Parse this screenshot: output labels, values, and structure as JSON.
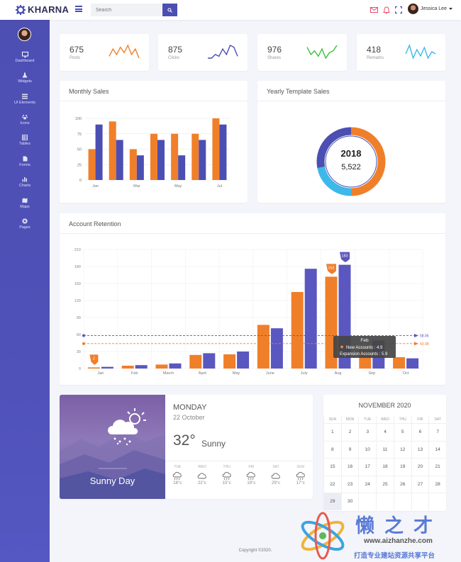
{
  "app": {
    "name": "KHARNA"
  },
  "search": {
    "placeholder": "Search"
  },
  "user": {
    "name": "Jessica Lee"
  },
  "sidebar": {
    "items": [
      {
        "label": "Dashboard",
        "icon": "monitor-icon"
      },
      {
        "label": "Widgets",
        "icon": "flask-icon"
      },
      {
        "label": "UI Elements",
        "icon": "list-icon"
      },
      {
        "label": "Icons",
        "icon": "paw-icon"
      },
      {
        "label": "Tables",
        "icon": "table-icon"
      },
      {
        "label": "Forms",
        "icon": "file-icon"
      },
      {
        "label": "Charts",
        "icon": "bar-chart-icon"
      },
      {
        "label": "Maps",
        "icon": "map-icon"
      },
      {
        "label": "Pages",
        "icon": "gear-icon"
      }
    ]
  },
  "stats": [
    {
      "value": "675",
      "label": "Posts",
      "color": "#f07f2a",
      "trend": [
        3,
        7,
        4,
        8,
        5,
        9,
        4,
        7,
        2
      ]
    },
    {
      "value": "875",
      "label": "Clicks",
      "color": "#4b4fb2",
      "trend": [
        2,
        2,
        4,
        3,
        7,
        4,
        9,
        8,
        3
      ]
    },
    {
      "value": "976",
      "label": "Shares",
      "color": "#3cc13b",
      "trend": [
        8,
        4,
        6,
        3,
        7,
        2,
        5,
        6,
        9
      ]
    },
    {
      "value": "418",
      "label": "Remarks",
      "color": "#3db8e8",
      "trend": [
        5,
        9,
        3,
        7,
        4,
        8,
        3,
        6,
        5
      ]
    }
  ],
  "monthly_sales": {
    "title": "Monthly Sales"
  },
  "yearly_sales": {
    "title": "Yearly Template Sales",
    "year": "2018",
    "total": "5,522",
    "segments": [
      {
        "value": 50,
        "color": "#f07f2a"
      },
      {
        "value": 22,
        "color": "#3db8e8"
      },
      {
        "value": 28,
        "color": "#4b4fb2"
      }
    ]
  },
  "account_retention": {
    "title": "Account Retention",
    "tooltip": {
      "title": "Feb",
      "line1": "New Accounts : 4.9",
      "line2": "Expansion Accounts : 5.9"
    },
    "ref_right1": "58.06",
    "ref_right2": "43.98",
    "pin_first": "2",
    "pin_162": "162",
    "pin_183": "183"
  },
  "weather": {
    "day": "MONDAY",
    "date": "22 October",
    "temp": "32°",
    "condition": "Sunny",
    "label": "Sunny Day",
    "forecast": [
      {
        "day": "TUE",
        "temp": "18°c",
        "icon": "rain-icon"
      },
      {
        "day": "WED",
        "temp": "22°c",
        "icon": "cloud-icon"
      },
      {
        "day": "THU",
        "temp": "15°c",
        "icon": "rain-icon"
      },
      {
        "day": "FRI",
        "temp": "19°c",
        "icon": "rain-icon"
      },
      {
        "day": "SAT",
        "temp": "29°c",
        "icon": "cloud-icon"
      },
      {
        "day": "SUN",
        "temp": "17°c",
        "icon": "rain-icon"
      }
    ]
  },
  "calendar": {
    "title": "NOVEMBER 2020",
    "weekdays": [
      "SUN",
      "MON",
      "TUE",
      "WED",
      "THU",
      "FRI",
      "SAT"
    ],
    "weeks": [
      [
        "1",
        "2",
        "3",
        "4",
        "5",
        "6",
        "7"
      ],
      [
        "8",
        "9",
        "10",
        "11",
        "12",
        "13",
        "14"
      ],
      [
        "15",
        "16",
        "17",
        "18",
        "19",
        "20",
        "21"
      ],
      [
        "22",
        "23",
        "24",
        "25",
        "26",
        "27",
        "28"
      ],
      [
        "29",
        "30",
        "",
        "",
        "",
        "",
        ""
      ]
    ],
    "selected": "29"
  },
  "footer": {
    "text": "Copyright ©2020."
  },
  "watermark": {
    "cn": "懒之才",
    "url": "www.aizhanzhe.com",
    "slogan": "打造专业建站资源共享平台"
  },
  "chart_data": [
    {
      "type": "bar",
      "title": "Monthly Sales",
      "categories": [
        "Jan",
        "",
        "Mar",
        "",
        "May",
        "",
        "Jul"
      ],
      "series": [
        {
          "name": "A",
          "color": "#f07f2a",
          "values": [
            50,
            95,
            50,
            75,
            75,
            75,
            100
          ]
        },
        {
          "name": "B",
          "color": "#4b4fb2",
          "values": [
            90,
            65,
            40,
            65,
            40,
            65,
            90
          ]
        }
      ],
      "yticks": [
        "0",
        "25",
        "50",
        "75",
        "100"
      ],
      "ylim": [
        0,
        100
      ],
      "xlabel": "",
      "ylabel": ""
    },
    {
      "type": "pie",
      "title": "Yearly Template Sales",
      "labels": [
        "",
        "",
        ""
      ],
      "values": [
        50,
        22,
        28
      ]
    },
    {
      "type": "bar",
      "title": "Account Retention",
      "categories": [
        "Jan",
        "Feb",
        "March",
        "April",
        "May",
        "June",
        "July",
        "Aug",
        "Sep",
        "Oct"
      ],
      "series": [
        {
          "name": "New Accounts",
          "color": "#f07f2a",
          "values": [
            2,
            5,
            7,
            24,
            25,
            77,
            135,
            162,
            33,
            20
          ]
        },
        {
          "name": "Expansion Accounts",
          "color": "#5a57c0",
          "values": [
            3,
            6,
            9,
            27,
            30,
            71,
            176,
            183,
            49,
            18
          ]
        }
      ],
      "reference_lines": [
        58.06,
        43.98
      ],
      "yticks": [
        "0",
        "30",
        "60",
        "90",
        "120",
        "150",
        "180",
        "210"
      ],
      "ylim": [
        0,
        210
      ],
      "xlabel": "",
      "ylabel": ""
    }
  ]
}
